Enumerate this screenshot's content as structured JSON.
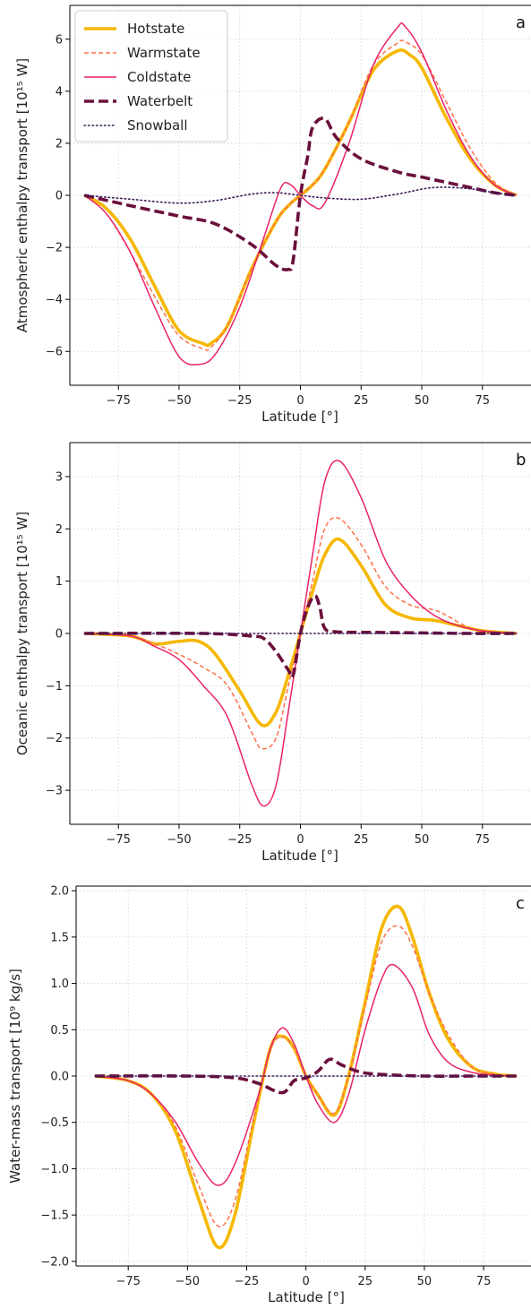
{
  "chart_data": [
    {
      "type": "line",
      "panel_label": "a",
      "xlabel": "Latitude [°]",
      "ylabel": "Atmospheric enthalpy transport [10¹⁵ W]",
      "xlim": [
        -95,
        95
      ],
      "ylim": [
        -7.3,
        7.3
      ],
      "xticks": [
        -75,
        -50,
        -25,
        0,
        25,
        50,
        75
      ],
      "yticks": [
        -6,
        -4,
        -2,
        0,
        2,
        4,
        6
      ],
      "grid": true,
      "legend_position": "top-left",
      "series": [
        {
          "name": "Hotstate",
          "color": "#f5b800",
          "style": "solid-thick",
          "x": [
            -89,
            -80,
            -70,
            -60,
            -50,
            -40,
            -37,
            -30,
            -20,
            -10,
            -5,
            0,
            5,
            10,
            20,
            30,
            40,
            45,
            50,
            60,
            70,
            80,
            89
          ],
          "y": [
            0,
            -0.5,
            -1.7,
            -3.5,
            -5.2,
            -5.7,
            -5.7,
            -5.0,
            -2.8,
            -1.0,
            -0.4,
            0,
            0.4,
            1.0,
            2.8,
            4.8,
            5.55,
            5.4,
            4.9,
            3.0,
            1.4,
            0.4,
            0
          ]
        },
        {
          "name": "Warmstate",
          "color": "#ff7048",
          "style": "dashed",
          "x": [
            -89,
            -80,
            -70,
            -60,
            -50,
            -40,
            -37,
            -30,
            -20,
            -10,
            -5,
            0,
            5,
            10,
            20,
            30,
            40,
            43,
            50,
            60,
            70,
            80,
            89
          ],
          "y": [
            0,
            -0.7,
            -2.2,
            -3.9,
            -5.4,
            -5.9,
            -5.85,
            -5.0,
            -2.8,
            -1.0,
            -0.4,
            0,
            0.4,
            1.0,
            2.8,
            5.0,
            5.85,
            5.9,
            5.4,
            3.6,
            1.8,
            0.5,
            0
          ]
        },
        {
          "name": "Coldstate",
          "color": "#e8236b",
          "style": "solid-thin",
          "x": [
            -89,
            -80,
            -70,
            -60,
            -50,
            -42,
            -35,
            -25,
            -15,
            -8,
            -4,
            0,
            5,
            10,
            20,
            30,
            40,
            43,
            50,
            60,
            70,
            80,
            89
          ],
          "y": [
            0,
            -0.7,
            -2.2,
            -4.3,
            -6.2,
            -6.5,
            -6.1,
            -4.3,
            -1.6,
            0.3,
            0.4,
            0,
            -0.4,
            -0.3,
            2.0,
            5.0,
            6.45,
            6.5,
            5.5,
            3.3,
            1.5,
            0.4,
            0
          ]
        },
        {
          "name": "Waterbelt",
          "color": "#6b0f3c",
          "style": "dashed-thick",
          "x": [
            -89,
            -70,
            -50,
            -35,
            -20,
            -10,
            -5,
            -3,
            0,
            3,
            5,
            10,
            15,
            25,
            40,
            50,
            60,
            70,
            80,
            89
          ],
          "y": [
            0,
            -0.4,
            -0.8,
            -1.1,
            -1.9,
            -2.7,
            -2.85,
            -2.5,
            0,
            1.5,
            2.6,
            2.95,
            2.2,
            1.4,
            0.9,
            0.7,
            0.5,
            0.3,
            0.1,
            0
          ]
        },
        {
          "name": "Snowball",
          "color": "#3d1d5c",
          "style": "dotted",
          "x": [
            -89,
            -70,
            -50,
            -35,
            -20,
            -10,
            0,
            10,
            25,
            40,
            55,
            70,
            80,
            89
          ],
          "y": [
            0,
            -0.15,
            -0.3,
            -0.2,
            0.05,
            0.1,
            0,
            -0.1,
            -0.15,
            0.05,
            0.3,
            0.25,
            0.1,
            0
          ]
        }
      ]
    },
    {
      "type": "line",
      "panel_label": "b",
      "xlabel": "Latitude [°]",
      "ylabel": "Oceanic enthalpy transport [10¹⁵ W]",
      "xlim": [
        -95,
        95
      ],
      "ylim": [
        -3.65,
        3.65
      ],
      "xticks": [
        -75,
        -50,
        -25,
        0,
        25,
        50,
        75
      ],
      "yticks": [
        -3,
        -2,
        -1,
        0,
        1,
        2,
        3
      ],
      "grid": true,
      "series": [
        {
          "name": "Hotstate",
          "color": "#f5b800",
          "style": "solid-thick",
          "x": [
            -89,
            -70,
            -60,
            -50,
            -42,
            -35,
            -25,
            -16,
            -10,
            -5,
            0,
            5,
            10,
            16,
            25,
            35,
            45,
            55,
            65,
            75,
            89
          ],
          "y": [
            0,
            -0.05,
            -0.2,
            -0.15,
            -0.15,
            -0.4,
            -1.1,
            -1.75,
            -1.5,
            -0.8,
            0,
            0.8,
            1.5,
            1.8,
            1.3,
            0.55,
            0.3,
            0.25,
            0.15,
            0.05,
            0
          ]
        },
        {
          "name": "Warmstate",
          "color": "#ff7048",
          "style": "dashed",
          "x": [
            -89,
            -70,
            -60,
            -50,
            -40,
            -30,
            -20,
            -16,
            -10,
            -5,
            0,
            5,
            10,
            16,
            25,
            35,
            45,
            55,
            60,
            70,
            80,
            89
          ],
          "y": [
            0,
            -0.05,
            -0.2,
            -0.4,
            -0.65,
            -1.0,
            -1.9,
            -2.2,
            -2.0,
            -1.0,
            0,
            1.0,
            2.0,
            2.2,
            1.7,
            0.9,
            0.55,
            0.45,
            0.35,
            0.1,
            0.02,
            0
          ]
        },
        {
          "name": "Coldstate",
          "color": "#e8236b",
          "style": "solid-thin",
          "x": [
            -89,
            -70,
            -60,
            -50,
            -40,
            -30,
            -20,
            -15,
            -10,
            -5,
            0,
            5,
            10,
            16,
            25,
            35,
            45,
            55,
            65,
            75,
            89
          ],
          "y": [
            0,
            -0.05,
            -0.25,
            -0.5,
            -1.0,
            -1.6,
            -2.9,
            -3.3,
            -2.9,
            -1.5,
            0,
            1.5,
            2.9,
            3.3,
            2.6,
            1.4,
            0.75,
            0.35,
            0.15,
            0.05,
            0
          ]
        },
        {
          "name": "Waterbelt",
          "color": "#6b0f3c",
          "style": "dashed-thick",
          "x": [
            -89,
            -40,
            -20,
            -15,
            -10,
            -5,
            -3,
            0,
            3,
            6,
            8,
            10,
            15,
            30,
            50,
            70,
            89
          ],
          "y": [
            0,
            0,
            -0.05,
            -0.1,
            -0.35,
            -0.7,
            -0.8,
            0,
            0.5,
            0.72,
            0.5,
            0.1,
            0.03,
            0.02,
            0.01,
            0,
            0
          ]
        },
        {
          "name": "Snowball",
          "color": "#3d1d5c",
          "style": "dotted",
          "x": [
            -89,
            -50,
            0,
            50,
            89
          ],
          "y": [
            0,
            0,
            0,
            0,
            0
          ]
        }
      ]
    },
    {
      "type": "line",
      "panel_label": "c",
      "xlabel": "Latitude [°]",
      "ylabel": "Water-mass transport [10⁹ kg/s]",
      "xlim": [
        -97,
        95
      ],
      "ylim": [
        -2.05,
        2.05
      ],
      "xticks": [
        -75,
        -50,
        -25,
        0,
        25,
        50,
        75
      ],
      "yticks": [
        -2.0,
        -1.5,
        -1.0,
        -0.5,
        0.0,
        0.5,
        1.0,
        1.5,
        2.0
      ],
      "ytick_labels": [
        "−2.0",
        "−1.5",
        "−1.0",
        "−0.5",
        "0.0",
        "0.5",
        "1.0",
        "1.5",
        "2.0"
      ],
      "grid": true,
      "series": [
        {
          "name": "Hotstate",
          "color": "#f5b800",
          "style": "solid-thick",
          "x": [
            -89,
            -75,
            -65,
            -55,
            -45,
            -37,
            -30,
            -22,
            -15,
            -10,
            -5,
            0,
            5,
            12,
            18,
            25,
            32,
            39,
            45,
            52,
            60,
            70,
            80,
            89
          ],
          "y": [
            0,
            -0.05,
            -0.2,
            -0.6,
            -1.35,
            -1.85,
            -1.5,
            -0.5,
            0.3,
            0.43,
            0.3,
            0.0,
            -0.2,
            -0.42,
            0.0,
            0.8,
            1.6,
            1.83,
            1.5,
            0.9,
            0.4,
            0.1,
            0.02,
            0
          ]
        },
        {
          "name": "Warmstate",
          "color": "#ff7048",
          "style": "dashed",
          "x": [
            -89,
            -75,
            -65,
            -55,
            -45,
            -37,
            -30,
            -22,
            -15,
            -10,
            -5,
            0,
            5,
            12,
            18,
            25,
            32,
            39,
            45,
            52,
            60,
            70,
            80,
            89
          ],
          "y": [
            0,
            -0.05,
            -0.2,
            -0.55,
            -1.2,
            -1.62,
            -1.35,
            -0.45,
            0.28,
            0.42,
            0.3,
            0.0,
            -0.2,
            -0.4,
            0.0,
            0.75,
            1.45,
            1.62,
            1.4,
            0.9,
            0.45,
            0.1,
            0.02,
            0
          ]
        },
        {
          "name": "Coldstate",
          "color": "#e8236b",
          "style": "solid-thin",
          "x": [
            -89,
            -75,
            -65,
            -55,
            -45,
            -37,
            -30,
            -20,
            -15,
            -10,
            -5,
            0,
            5,
            12,
            18,
            25,
            32,
            37,
            45,
            52,
            60,
            70,
            80,
            89
          ],
          "y": [
            0,
            -0.05,
            -0.2,
            -0.5,
            -0.95,
            -1.18,
            -0.95,
            -0.2,
            0.3,
            0.52,
            0.35,
            0.0,
            -0.3,
            -0.5,
            -0.2,
            0.5,
            1.05,
            1.2,
            0.95,
            0.45,
            0.15,
            0.04,
            0.01,
            0
          ]
        },
        {
          "name": "Waterbelt",
          "color": "#6b0f3c",
          "style": "dashed-thick",
          "x": [
            -89,
            -50,
            -30,
            -20,
            -10,
            -5,
            0,
            5,
            10,
            15,
            22,
            30,
            50,
            70,
            89
          ],
          "y": [
            0,
            0,
            -0.02,
            -0.08,
            -0.18,
            -0.05,
            -0.02,
            0.05,
            0.18,
            0.12,
            0.05,
            0.02,
            0,
            0,
            0
          ]
        },
        {
          "name": "Snowball",
          "color": "#3d1d5c",
          "style": "dotted",
          "x": [
            -89,
            -50,
            0,
            50,
            89
          ],
          "y": [
            0,
            0,
            0,
            0,
            0
          ]
        }
      ]
    }
  ]
}
